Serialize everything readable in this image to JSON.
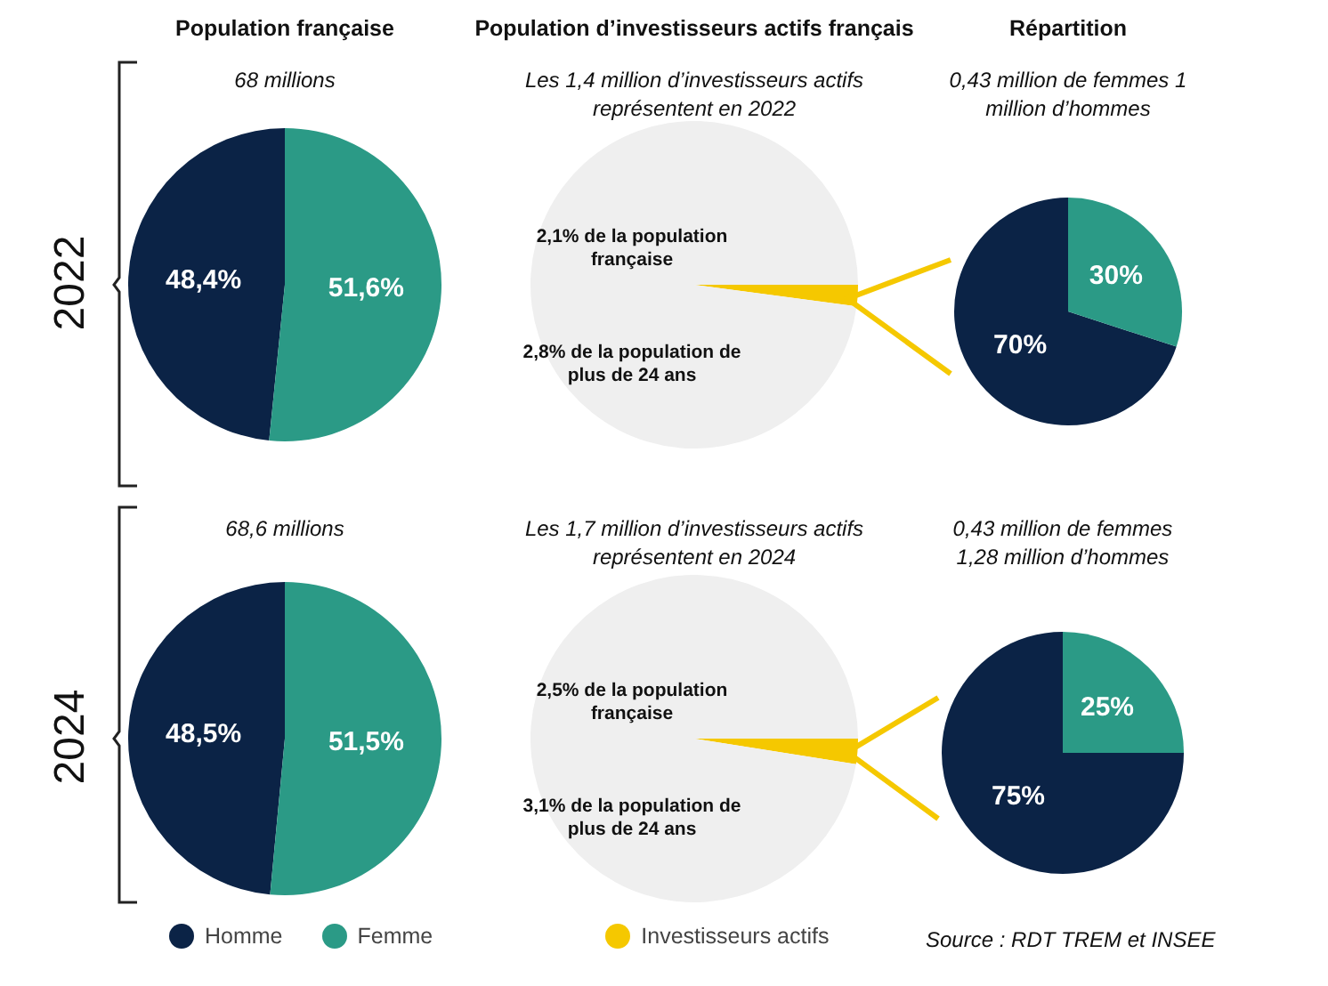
{
  "chart_data": [
    {
      "type": "pie",
      "title": "Population française",
      "subtitle": "68 millions",
      "ylabel": "2022",
      "categories": [
        "Homme",
        "Femme"
      ],
      "values": [
        48.4,
        51.6
      ],
      "colors": [
        "#0b2346",
        "#2b9a86"
      ],
      "value_labels": [
        "48,4%",
        "51,6%"
      ],
      "legend": "bottom"
    },
    {
      "type": "pie",
      "title": "Population d’investisseurs actifs français",
      "subtitle": "Les 1,4 million d’investisseurs actifs représentent en 2022",
      "categories": [
        "Investisseurs actifs",
        null
      ],
      "values": [
        2.1,
        97.9
      ],
      "colors": [
        "#f5c800",
        "#efefef"
      ],
      "annotations": [
        "2,1% de la population française",
        "2,8% de la population de plus de 24 ans"
      ],
      "legend": "bottom"
    },
    {
      "type": "pie",
      "title": "Répartition",
      "subtitle": "0,43 million de femmes 1 million d’hommes",
      "categories": [
        null,
        null
      ],
      "values": [
        70,
        30
      ],
      "colors": [
        "#0b2346",
        "#2b9a86"
      ],
      "value_labels": [
        "70%",
        "30%"
      ]
    },
    {
      "type": "pie",
      "subtitle": "68,6 millions",
      "ylabel": "2024",
      "categories": [
        null,
        null
      ],
      "values": [
        48.5,
        51.5
      ],
      "colors": [
        "#0b2346",
        "#2b9a86"
      ],
      "value_labels": [
        "48,5%",
        "51,5%"
      ]
    },
    {
      "type": "pie",
      "subtitle": "Les 1,7 million d’investisseurs actifs représentent en 2024",
      "categories": [
        null,
        null
      ],
      "values": [
        2.5,
        97.5
      ],
      "colors": [
        "#f5c800",
        "#efefef"
      ],
      "annotations": [
        "2,5% de la population française",
        "3,1% de la population de plus de 24 ans"
      ]
    },
    {
      "type": "pie",
      "subtitle": "0,43 million de femmes 1,28 million d’hommes",
      "categories": [
        null,
        null
      ],
      "values": [
        75,
        25
      ],
      "colors": [
        "#0b2346",
        "#2b9a86"
      ],
      "value_labels": [
        "75%",
        "25%"
      ],
      "annotations": [
        "Source : RDT TREM et INSEE"
      ]
    }
  ]
}
